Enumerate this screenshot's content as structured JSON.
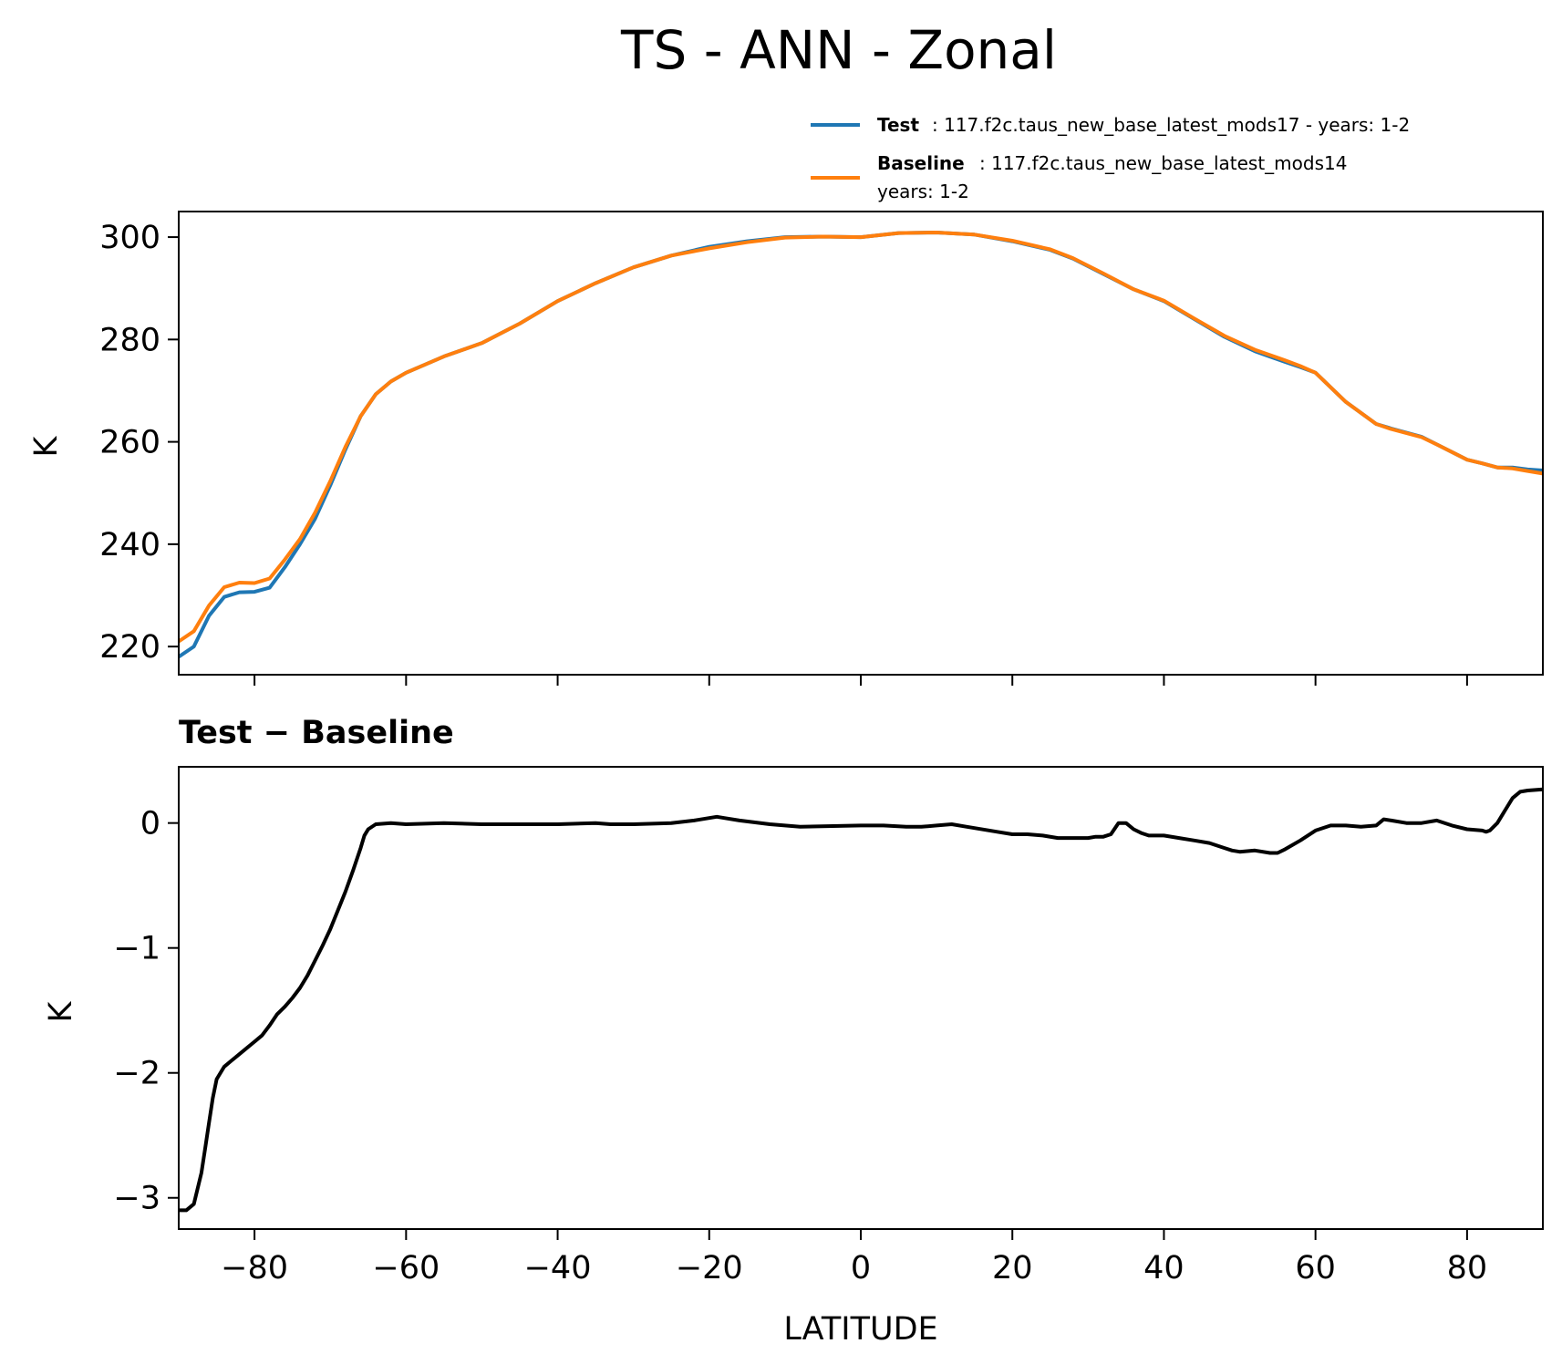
{
  "chart_data": [
    {
      "type": "line",
      "title": "TS - ANN - Zonal",
      "xlabel": "LATITUDE",
      "ylabel": "K",
      "xlim": [
        -90,
        90
      ],
      "ylim": [
        214.5,
        305
      ],
      "x_ticks": [
        "−80",
        "−60",
        "−40",
        "−20",
        "0",
        "20",
        "40",
        "60",
        "80"
      ],
      "y_ticks": [
        "220",
        "240",
        "260",
        "280",
        "300"
      ],
      "legend": {
        "placement": "above-top-right",
        "entries": [
          {
            "bold": "Test",
            "text_lines": [
              ": 117.f2c.taus_new_base_latest_mods17 - years: 1-2"
            ]
          },
          {
            "bold": "Baseline",
            "text_lines": [
              ": 117.f2c.taus_new_base_latest_mods14",
              "years: 1-2"
            ]
          }
        ]
      },
      "colors": {
        "test": "#1f77b4",
        "baseline": "#ff7f0e"
      },
      "x": [
        -90,
        -88,
        -86,
        -84,
        -82,
        -80,
        -78,
        -76,
        -74,
        -72,
        -70,
        -68,
        -66,
        -64,
        -62,
        -60,
        -55,
        -50,
        -45,
        -40,
        -35,
        -30,
        -25,
        -20,
        -15,
        -10,
        -5,
        0,
        5,
        10,
        15,
        20,
        25,
        28,
        32,
        36,
        40,
        44,
        48,
        52,
        56,
        58,
        60,
        64,
        68,
        70,
        74,
        76,
        78,
        80,
        82,
        84,
        86,
        88,
        90
      ],
      "series": [
        {
          "name": "Test",
          "values": [
            218.0,
            220.0,
            226.0,
            229.7,
            230.6,
            230.7,
            231.5,
            235.5,
            240.0,
            245.0,
            251.5,
            258.5,
            265.0,
            269.3,
            271.8,
            273.5,
            276.7,
            279.3,
            283.1,
            287.5,
            291.0,
            294.1,
            296.4,
            298.1,
            299.2,
            300.0,
            300.1,
            300.0,
            300.8,
            300.9,
            300.5,
            299.2,
            297.5,
            295.8,
            292.8,
            289.8,
            287.5,
            284.0,
            280.5,
            277.7,
            275.6,
            274.6,
            273.5,
            267.8,
            263.5,
            262.6,
            261.0,
            259.5,
            258.0,
            256.5,
            255.8,
            255.0,
            255.0,
            254.6,
            254.4
          ]
        },
        {
          "name": "Baseline",
          "values": [
            221.0,
            223.0,
            228.0,
            231.6,
            232.5,
            232.4,
            233.3,
            237.0,
            241.0,
            246.2,
            252.3,
            259.0,
            265.0,
            269.3,
            271.8,
            273.5,
            276.7,
            279.3,
            283.1,
            287.5,
            291.0,
            294.1,
            296.4,
            297.8,
            299.0,
            299.9,
            300.1,
            300.0,
            300.8,
            300.9,
            300.5,
            299.3,
            297.6,
            295.9,
            292.9,
            289.8,
            287.6,
            284.1,
            280.7,
            278.0,
            275.9,
            274.8,
            273.5,
            267.8,
            263.5,
            262.5,
            260.9,
            259.5,
            258.0,
            256.5,
            255.8,
            255.0,
            254.8,
            254.3,
            253.8
          ]
        }
      ]
    },
    {
      "type": "line",
      "title": "Test − Baseline",
      "xlabel": "LATITUDE",
      "ylabel": "K",
      "xlim": [
        -90,
        90
      ],
      "ylim": [
        -3.25,
        0.45
      ],
      "x_ticks": [
        "−80",
        "−60",
        "−40",
        "−20",
        "0",
        "20",
        "40",
        "60",
        "80"
      ],
      "y_ticks": [
        "0",
        "−1",
        "−2",
        "−3"
      ],
      "colors": {
        "diff": "#000000"
      },
      "x": [
        -90,
        -89,
        -88,
        -87,
        -86.5,
        -86,
        -85.5,
        -85,
        -84,
        -83,
        -82,
        -80,
        -79,
        -78,
        -77,
        -76,
        -75,
        -74,
        -73,
        -72,
        -71,
        -70,
        -69,
        -68,
        -67,
        -66,
        -65.5,
        -65,
        -64,
        -62,
        -60,
        -55,
        -50,
        -45,
        -40,
        -35,
        -33,
        -30,
        -25,
        -22,
        -19,
        -18,
        -16,
        -12,
        -8,
        0,
        3,
        6,
        8,
        10,
        12,
        14,
        18,
        20,
        22,
        24,
        26,
        28,
        30,
        31,
        32,
        33,
        34,
        35,
        36,
        37,
        38,
        40,
        42,
        44,
        46,
        48,
        49,
        50,
        52,
        54,
        55,
        56,
        58,
        60,
        62,
        64,
        66,
        68,
        69,
        70,
        72,
        74,
        76,
        78,
        80,
        82,
        82.5,
        83,
        84,
        85,
        86,
        87,
        88,
        90
      ],
      "series": [
        {
          "name": "",
          "values": [
            -3.1,
            -3.1,
            -3.05,
            -2.8,
            -2.6,
            -2.4,
            -2.2,
            -2.05,
            -1.95,
            -1.9,
            -1.85,
            -1.75,
            -1.7,
            -1.62,
            -1.53,
            -1.47,
            -1.4,
            -1.32,
            -1.22,
            -1.1,
            -0.98,
            -0.85,
            -0.7,
            -0.55,
            -0.38,
            -0.2,
            -0.1,
            -0.05,
            -0.01,
            0.0,
            -0.01,
            0.0,
            -0.01,
            -0.01,
            -0.01,
            0.0,
            -0.01,
            -0.01,
            0.0,
            0.02,
            0.05,
            0.04,
            0.02,
            -0.01,
            -0.03,
            -0.02,
            -0.02,
            -0.03,
            -0.03,
            -0.02,
            -0.01,
            -0.03,
            -0.07,
            -0.09,
            -0.09,
            -0.1,
            -0.12,
            -0.12,
            -0.12,
            -0.11,
            -0.11,
            -0.09,
            0.0,
            0.0,
            -0.05,
            -0.08,
            -0.1,
            -0.1,
            -0.12,
            -0.14,
            -0.16,
            -0.2,
            -0.22,
            -0.23,
            -0.22,
            -0.24,
            -0.24,
            -0.21,
            -0.14,
            -0.06,
            -0.02,
            -0.02,
            -0.03,
            -0.02,
            0.03,
            0.02,
            0.0,
            0.0,
            0.02,
            -0.02,
            -0.05,
            -0.06,
            -0.07,
            -0.06,
            0.0,
            0.1,
            0.2,
            0.25,
            0.26,
            0.27
          ]
        }
      ]
    }
  ]
}
